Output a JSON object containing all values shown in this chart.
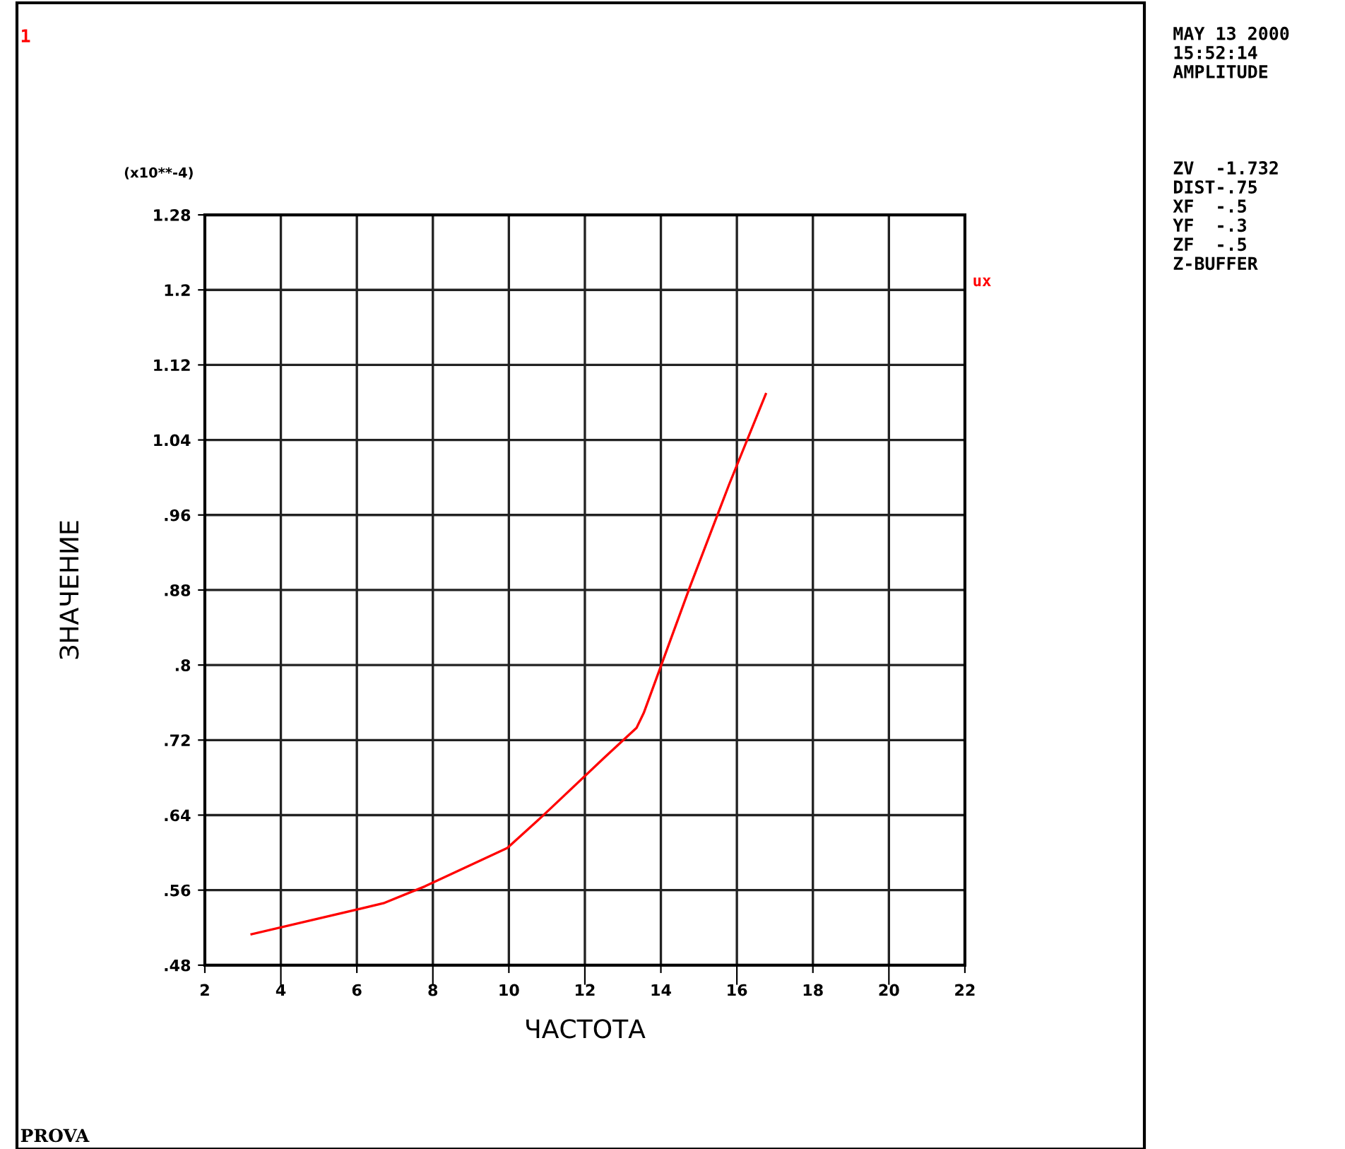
{
  "chart_data": {
    "type": "line",
    "xlabel": "ЧАСТОТА",
    "ylabel": "ЗНАЧЕНИЕ",
    "xlim": [
      2,
      22
    ],
    "xticks": [
      2,
      4,
      6,
      8,
      10,
      12,
      14,
      16,
      18,
      20,
      22
    ],
    "ylim": [
      0.48,
      1.28
    ],
    "yticks": [
      {
        "value": 0.48,
        "label": ".48"
      },
      {
        "value": 0.56,
        "label": ".56"
      },
      {
        "value": 0.64,
        "label": ".64"
      },
      {
        "value": 0.72,
        "label": ".72"
      },
      {
        "value": 0.8,
        "label": ".8"
      },
      {
        "value": 0.88,
        "label": ".88"
      },
      {
        "value": 0.96,
        "label": ".96"
      },
      {
        "value": 1.04,
        "label": "1.04"
      },
      {
        "value": 1.12,
        "label": "1.12"
      },
      {
        "value": 1.2,
        "label": "1.2"
      },
      {
        "value": 1.28,
        "label": "1.28"
      }
    ],
    "grid": true,
    "marker": "none",
    "line_style": "solid",
    "series": [
      {
        "name": "ux",
        "color": "#ff0000",
        "x": [
          3.23,
          6.7,
          7.79,
          9.96,
          10.86,
          12.53,
          13.36,
          13.55,
          14.77,
          15.8,
          16.76
        ],
        "values": [
          0.513,
          0.546,
          0.564,
          0.605,
          0.638,
          0.702,
          0.733,
          0.749,
          0.884,
          0.993,
          1.089
        ]
      }
    ],
    "annotations": [
      "(x10**-4)",
      "1",
      "PROVA",
      "MAY 13 2000\n15:52:14\nAMPLITUDE",
      "ZV  -1.732\nDIST-.75\nXF  -.5\nYF  -.3\nZF  -.5\nZ-BUFFER"
    ]
  }
}
